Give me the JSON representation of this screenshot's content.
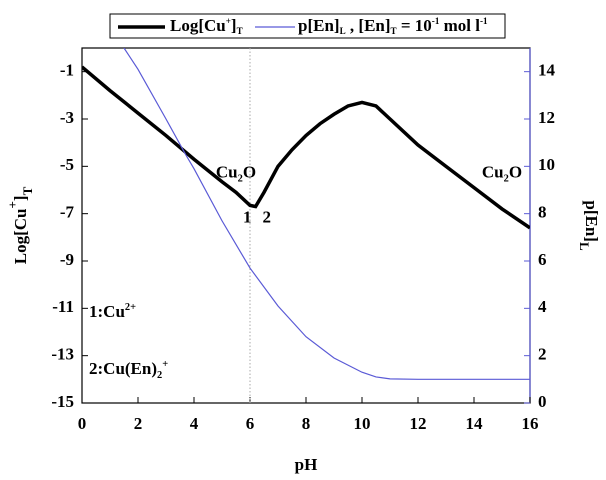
{
  "chart_data": {
    "type": "line",
    "x_label": [
      {
        "text": "pH"
      }
    ],
    "y_label": [
      {
        "text": "Log[Cu"
      },
      {
        "text": "+",
        "sup": true
      },
      {
        "text": "]"
      },
      {
        "text": "T",
        "sub": true
      }
    ],
    "y2_label": [
      {
        "text": "p[En]"
      },
      {
        "text": "L",
        "sub": true
      }
    ],
    "xlim": [
      0,
      16
    ],
    "xticks": [
      0,
      2,
      4,
      6,
      8,
      10,
      12,
      14,
      16
    ],
    "ylim": [
      -15,
      0
    ],
    "yticks": [
      -15,
      -13,
      -11,
      -9,
      -7,
      -5,
      -3,
      -1
    ],
    "y2lim": [
      0,
      15
    ],
    "y2ticks": [
      0,
      2,
      4,
      6,
      8,
      10,
      12,
      14
    ],
    "vline": 6,
    "series": [
      {
        "name": [
          {
            "text": "Log[Cu"
          },
          {
            "text": "+",
            "sup": true
          },
          {
            "text": "]"
          },
          {
            "text": "T",
            "sub": true
          }
        ],
        "color": "#000000",
        "width": 3.5,
        "x": [
          0,
          1,
          2,
          3,
          4,
          5,
          5.5,
          6,
          6.2,
          6.5,
          7,
          7.5,
          8,
          8.5,
          9,
          9.5,
          10,
          10.5,
          11,
          12,
          13,
          14,
          15,
          16
        ],
        "values": [
          -0.8,
          -1.8,
          -2.75,
          -3.7,
          -4.7,
          -5.65,
          -6.1,
          -6.65,
          -6.7,
          -6.1,
          -5.0,
          -4.3,
          -3.7,
          -3.2,
          -2.8,
          -2.45,
          -2.3,
          -2.45,
          -3.0,
          -4.1,
          -5.0,
          -5.9,
          -6.8,
          -7.6
        ]
      },
      {
        "name": [
          {
            "text": "p[En]"
          },
          {
            "text": "L",
            "sub": true
          },
          {
            "text": " , [En]"
          },
          {
            "text": "T",
            "sub": true
          },
          {
            "text": " = 10"
          },
          {
            "text": "-1",
            "sup": true
          },
          {
            "text": " mol l"
          },
          {
            "text": "-1",
            "sup": true
          }
        ],
        "color": "#5a5ad6",
        "width": 1.2,
        "axis": "y2",
        "x": [
          1.5,
          2,
          3,
          3.7,
          4,
          5,
          6,
          7,
          8,
          9,
          10,
          10.5,
          11,
          12,
          16
        ],
        "values": [
          15,
          14.1,
          12.0,
          10.5,
          9.9,
          7.7,
          5.7,
          4.1,
          2.8,
          1.9,
          1.3,
          1.1,
          1.02,
          1,
          1
        ]
      }
    ],
    "annotations": [
      {
        "text": [
          {
            "text": "Cu"
          },
          {
            "text": "2",
            "sub": true
          },
          {
            "text": "O"
          }
        ],
        "x": 5.5,
        "y": -5.3
      },
      {
        "text": [
          {
            "text": "Cu"
          },
          {
            "text": "2",
            "sub": true
          },
          {
            "text": "O"
          }
        ],
        "x": 15.0,
        "y": -5.3
      },
      {
        "text": [
          {
            "text": "1"
          }
        ],
        "x": 5.9,
        "y": -7.2
      },
      {
        "text": [
          {
            "text": "2"
          }
        ],
        "x": 6.6,
        "y": -7.2
      },
      {
        "text": [
          {
            "text": "1:Cu"
          },
          {
            "text": "2+",
            "sup": true
          }
        ],
        "x": 0.25,
        "y": -11.2
      },
      {
        "text": [
          {
            "text": "2:Cu(En)"
          },
          {
            "text": "2",
            "sub": true
          },
          {
            "text": "+",
            "sup": true
          }
        ],
        "x": 0.25,
        "y": -13.6
      }
    ]
  }
}
